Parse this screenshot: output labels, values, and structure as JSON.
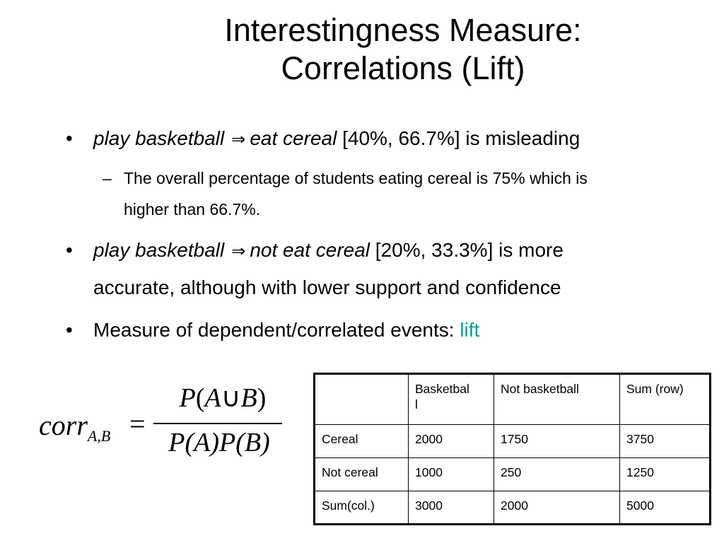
{
  "slide": {
    "title_line1": "Interestingness Measure:",
    "title_line2": "Correlations (Lift)"
  },
  "bullets": {
    "b1": {
      "italic1": "play basketball",
      "arrow": "⇒",
      "italic2": "eat cereal",
      "rest": "[40%, 66.7%]  is misleading"
    },
    "b1_sub": {
      "line1": "The overall percentage of students eating cereal is 75% which is",
      "line2": "higher than 66.7%."
    },
    "b2": {
      "italic1": "play basketball",
      "arrow": "⇒",
      "italic2": "not eat cereal",
      "rest": "[20%, 33.3%] is more",
      "line2": "accurate, although with lower support and confidence"
    },
    "b3": {
      "text": "Measure of dependent/correlated events: ",
      "highlight": "lift"
    },
    "bullet_glyph": "•",
    "dash_glyph": "–"
  },
  "formula": {
    "lhs": "corr",
    "sub": "A,B",
    "eq": "=",
    "num_p": "P",
    "num_open": "(",
    "num_a": "A",
    "num_union": "∪",
    "num_b": "B",
    "num_close": ")",
    "den": "P(A)P(B)"
  },
  "table": {
    "header": [
      "",
      "Basketbal\nl",
      "Not basketball",
      "Sum (row)"
    ],
    "rows": [
      [
        "Cereal",
        "2000",
        "1750",
        "3750"
      ],
      [
        "Not cereal",
        "1000",
        "250",
        "1250"
      ],
      [
        "Sum(col.)",
        "3000",
        "2000",
        "5000"
      ]
    ]
  },
  "colors": {
    "highlight": "#00a0a0"
  }
}
